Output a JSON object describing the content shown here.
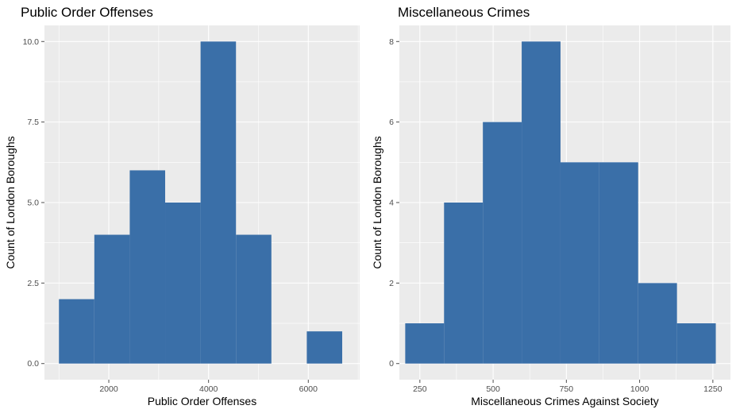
{
  "chart_data": [
    {
      "type": "bar",
      "subtype": "histogram",
      "title": "Public Order Offenses",
      "xlabel": "Public Order Offenses",
      "ylabel": "Count of London Boroughs",
      "xlim": [
        710,
        7030
      ],
      "ylim": [
        -0.5,
        10.5
      ],
      "xticks": [
        2000,
        4000,
        6000
      ],
      "xtick_labels": [
        "2000",
        "4000",
        "6000"
      ],
      "yticks": [
        0,
        2.5,
        5,
        7.5,
        10
      ],
      "ytick_labels": [
        "0.0",
        "2.5",
        "5.0",
        "7.5",
        "10.0"
      ],
      "bar_color": "#3a6fa8",
      "bins": [
        {
          "x0": 1000,
          "x1": 1710,
          "count": 2
        },
        {
          "x0": 1710,
          "x1": 2420,
          "count": 4
        },
        {
          "x0": 2420,
          "x1": 3130,
          "count": 6
        },
        {
          "x0": 3130,
          "x1": 3840,
          "count": 5
        },
        {
          "x0": 3840,
          "x1": 4550,
          "count": 10
        },
        {
          "x0": 4550,
          "x1": 5260,
          "count": 4
        },
        {
          "x0": 5260,
          "x1": 5970,
          "count": 0
        },
        {
          "x0": 5970,
          "x1": 6680,
          "count": 1
        }
      ]
    },
    {
      "type": "bar",
      "subtype": "histogram",
      "title": "Miscellaneous Crimes",
      "xlabel": "Miscellaneous Crimes Against Society",
      "ylabel": "Count of London Boroughs",
      "xlim": [
        180,
        1310
      ],
      "ylim": [
        -0.4,
        8.4
      ],
      "xticks": [
        250,
        500,
        750,
        1000,
        1250
      ],
      "xtick_labels": [
        "250",
        "500",
        "750",
        "1000",
        "1250"
      ],
      "yticks": [
        0,
        2,
        4,
        6,
        8
      ],
      "ytick_labels": [
        "0",
        "2",
        "4",
        "6",
        "8"
      ],
      "bar_color": "#3a6fa8",
      "bins": [
        {
          "x0": 200,
          "x1": 332.5,
          "count": 1
        },
        {
          "x0": 332.5,
          "x1": 465,
          "count": 4
        },
        {
          "x0": 465,
          "x1": 597.5,
          "count": 6
        },
        {
          "x0": 597.5,
          "x1": 730,
          "count": 8
        },
        {
          "x0": 730,
          "x1": 862.5,
          "count": 5
        },
        {
          "x0": 862.5,
          "x1": 995,
          "count": 5
        },
        {
          "x0": 995,
          "x1": 1127.5,
          "count": 2
        },
        {
          "x0": 1127.5,
          "x1": 1260,
          "count": 1
        }
      ]
    }
  ]
}
